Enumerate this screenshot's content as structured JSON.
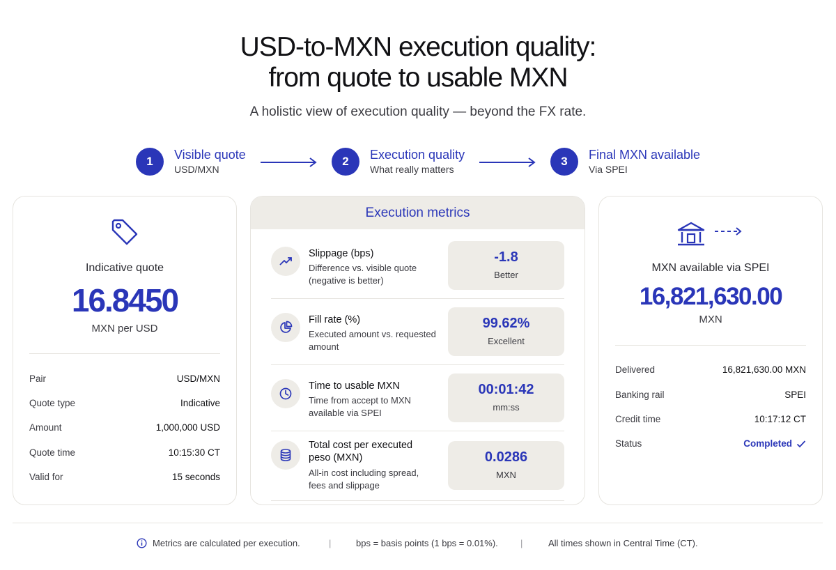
{
  "title_line1": "USD-to-MXN execution quality:",
  "title_line2": "from quote to usable MXN",
  "subtitle": "A holistic view of execution quality — beyond the FX rate.",
  "steps": [
    {
      "num": "1",
      "title": "Visible quote",
      "sub": "USD/MXN"
    },
    {
      "num": "2",
      "title": "Execution quality",
      "sub": "What really matters"
    },
    {
      "num": "3",
      "title": "Final MXN available",
      "sub": "Via SPEI"
    }
  ],
  "left_card": {
    "icon": "price-tag-icon",
    "label": "Indicative quote",
    "value": "16.8450",
    "unit": "MXN per USD",
    "rows": [
      {
        "k": "Pair",
        "v": "USD/MXN"
      },
      {
        "k": "Quote type",
        "v": "Indicative"
      },
      {
        "k": "Amount",
        "v": "1,000,000 USD"
      },
      {
        "k": "Quote time",
        "v": "10:15:30 CT"
      },
      {
        "k": "Valid for",
        "v": "15 seconds"
      }
    ]
  },
  "mid_card": {
    "header": "Execution metrics",
    "metrics": [
      {
        "icon": "trend-up-icon",
        "title": "Slippage (bps)",
        "desc": "Difference vs. visible quote (negative is better)",
        "value": "-1.8",
        "note": "Better"
      },
      {
        "icon": "pie-chart-icon",
        "title": "Fill rate (%)",
        "desc": "Executed amount vs. requested amount",
        "value": "99.62%",
        "note": "Excellent"
      },
      {
        "icon": "clock-icon",
        "title": "Time to usable MXN",
        "desc": "Time from accept to MXN available via SPEI",
        "value": "00:01:42",
        "note": "mm:ss"
      },
      {
        "icon": "coins-icon",
        "title": "Total cost per executed peso (MXN)",
        "desc": "All-in cost including spread, fees and slippage",
        "value": "0.0286",
        "note": "MXN"
      }
    ]
  },
  "right_card": {
    "icon": "bank-icon",
    "label": "MXN available via SPEI",
    "value": "16,821,630.00",
    "unit": "MXN",
    "rows": [
      {
        "k": "Delivered",
        "v": "16,821,630.00 MXN"
      },
      {
        "k": "Banking rail",
        "v": "SPEI"
      },
      {
        "k": "Credit time",
        "v": "10:17:12 CT"
      },
      {
        "k": "Status",
        "v": "Completed"
      }
    ]
  },
  "footer": {
    "note1": "Metrics are calculated per execution.",
    "separator": "|",
    "note2": "bps = basis points (1 bps = 0.01%).",
    "note3": "All times shown in Central Time (CT)."
  },
  "colors": {
    "accent": "#2a36b8",
    "panel": "#eeece7",
    "border": "#e6e4df"
  }
}
